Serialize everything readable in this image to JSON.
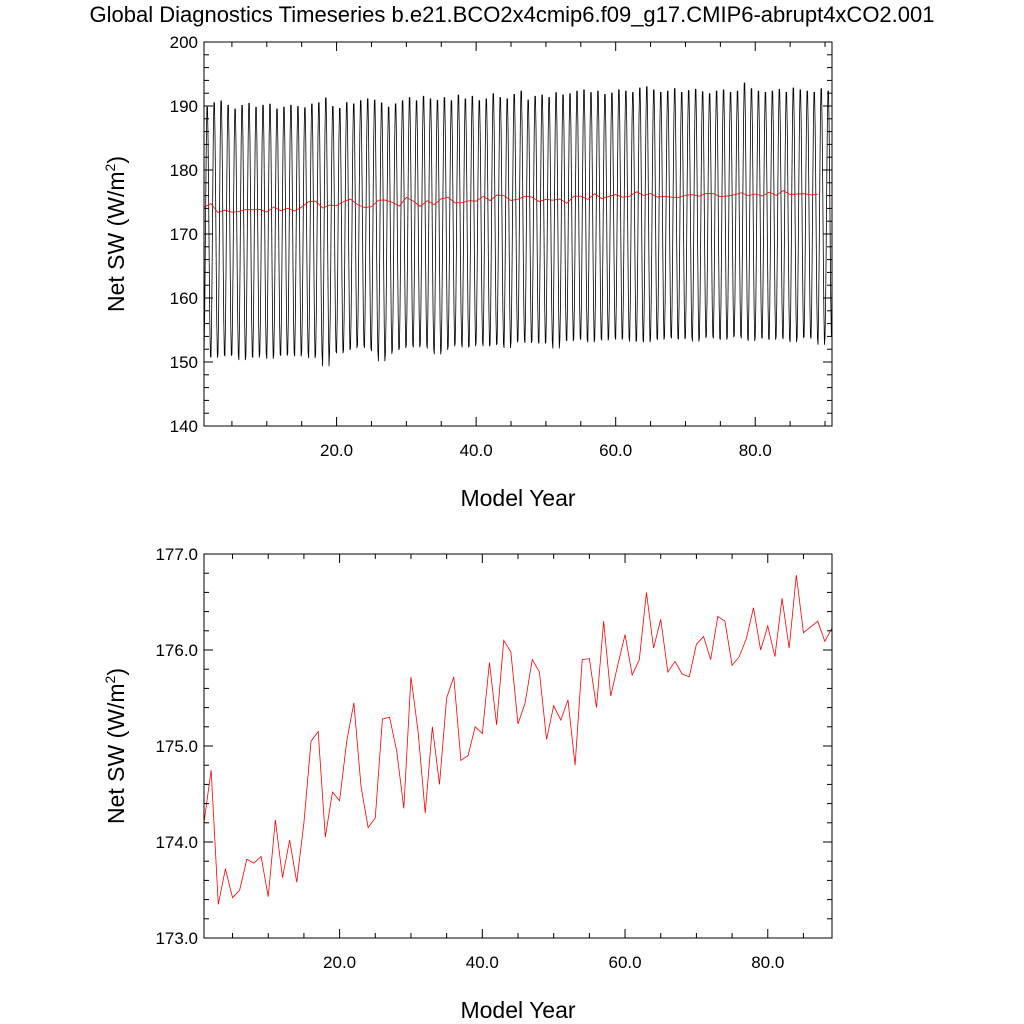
{
  "title": "Global Diagnostics Timeseries b.e21.BCO2x4cmip6.f09_g17.CMIP6-abrupt4xCO2.001",
  "colors": {
    "monthly": "#000000",
    "annual": "#ff0000"
  },
  "chart_data": [
    {
      "type": "line",
      "xlabel": "Model Year",
      "ylabel_main": "Net SW (W/m",
      "ylabel_sup": "2",
      "ylabel_end": ")",
      "xlim": [
        1,
        91
      ],
      "ylim": [
        140,
        200
      ],
      "yticks": [
        140,
        150,
        160,
        170,
        180,
        190,
        200
      ],
      "ytick_labels": [
        "140",
        "150",
        "160",
        "170",
        "180",
        "190",
        "200"
      ],
      "xticks": [
        20,
        40,
        60,
        80
      ],
      "xtick_labels": [
        "20.0",
        "40.0",
        "60.0",
        "80.0"
      ],
      "grid": false,
      "series": [
        {
          "color": "#000000",
          "style": "monthly seasonal cycle",
          "x_start": 1,
          "steps_per_year": 12,
          "annual_max": [
            190.5,
            191.2,
            191.5,
            190.8,
            190.2,
            190.8,
            191.1,
            190.5,
            190.8,
            191.0,
            190.2,
            190.5,
            190.8,
            190.6,
            190.4,
            191.0,
            191.2,
            192.0,
            190.6,
            190.3,
            191.2,
            191.0,
            191.5,
            191.8,
            191.6,
            191.2,
            190.5,
            191.0,
            191.5,
            192.0,
            191.5,
            192.2,
            191.8,
            191.6,
            192.0,
            191.5,
            192.4,
            191.8,
            192.2,
            191.5,
            191.8,
            192.6,
            192.0,
            191.8,
            192.5,
            193.0,
            191.6,
            192.2,
            192.4,
            192.0,
            192.8,
            192.4,
            192.6,
            193.0,
            193.2,
            192.8,
            193.0,
            192.5,
            192.7,
            193.2,
            193.0,
            192.8,
            193.5,
            193.7,
            193.2,
            192.8,
            193.0,
            193.4,
            192.8,
            193.1,
            193.3,
            192.9,
            192.6,
            193.0,
            193.2,
            192.8,
            193.0,
            194.3,
            193.4,
            193.0,
            192.8,
            193.0,
            193.3,
            192.8,
            193.5,
            193.2,
            193.0,
            192.8,
            193.4,
            193.0
          ],
          "annual_min": [
            150.2,
            150.0,
            150.4,
            150.3,
            150.5,
            149.6,
            150.2,
            150.0,
            150.6,
            149.8,
            150.5,
            150.3,
            150.7,
            150.2,
            150.8,
            149.9,
            150.5,
            148.6,
            151.0,
            150.7,
            151.2,
            151.5,
            152.0,
            151.5,
            151.0,
            149.4,
            150.6,
            151.2,
            151.5,
            152.0,
            151.6,
            152.1,
            151.4,
            150.5,
            151.2,
            151.8,
            152.2,
            151.6,
            151.8,
            152.4,
            151.8,
            152.0,
            152.2,
            151.5,
            152.4,
            152.8,
            152.3,
            152.6,
            152.2,
            152.5,
            151.4,
            152.8,
            152.6,
            153.0,
            152.8,
            152.4,
            153.0,
            152.7,
            153.2,
            152.8,
            153.1,
            152.5,
            152.7,
            152.4,
            153.0,
            152.8,
            153.3,
            153.0,
            152.9,
            153.2,
            152.5,
            153.1,
            153.4,
            153.0,
            152.8,
            153.2,
            153.5,
            153.0,
            152.6,
            153.2,
            153.0,
            152.8,
            153.3,
            152.9,
            152.4,
            153.1,
            153.3,
            153.0,
            152.0,
            153.2
          ]
        },
        {
          "color": "#ff0000",
          "style": "annual mean",
          "x_start": 1,
          "values": [
            174.2,
            174.75,
            173.35,
            173.72,
            173.42,
            173.5,
            173.82,
            173.78,
            173.85,
            173.43,
            174.23,
            173.63,
            174.02,
            173.58,
            174.2,
            175.05,
            175.15,
            174.05,
            174.52,
            174.43,
            175.05,
            175.45,
            174.58,
            174.15,
            174.25,
            175.28,
            175.3,
            174.95,
            174.35,
            175.72,
            175.15,
            174.3,
            175.2,
            174.6,
            175.5,
            175.72,
            174.85,
            174.9,
            175.2,
            175.13,
            175.87,
            175.22,
            176.1,
            175.98,
            175.23,
            175.45,
            175.9,
            175.77,
            175.07,
            175.42,
            175.27,
            175.48,
            174.8,
            175.9,
            175.91,
            175.4,
            176.3,
            175.52,
            175.85,
            176.16,
            175.74,
            175.9,
            176.6,
            176.02,
            176.32,
            175.77,
            175.88,
            175.75,
            175.72,
            176.06,
            176.14,
            175.9,
            176.35,
            176.3,
            175.84,
            175.93,
            176.12,
            176.44,
            176.0,
            176.25,
            175.93,
            176.54,
            176.02,
            176.78,
            176.18,
            176.24,
            176.3,
            176.09,
            176.23
          ]
        }
      ]
    },
    {
      "type": "line",
      "xlabel": "Model Year",
      "ylabel_main": "Net SW (W/m",
      "ylabel_sup": "2",
      "ylabel_end": ")",
      "xlim": [
        1,
        89
      ],
      "ylim": [
        173,
        177
      ],
      "yticks": [
        173,
        174,
        175,
        176,
        177
      ],
      "ytick_labels": [
        "173.0",
        "174.0",
        "175.0",
        "176.0",
        "177.0"
      ],
      "xticks": [
        20,
        40,
        60,
        80
      ],
      "xtick_labels": [
        "20.0",
        "40.0",
        "60.0",
        "80.0"
      ],
      "grid": false,
      "series": [
        {
          "color": "#ff0000",
          "style": "annual mean",
          "x_start": 1,
          "values": [
            174.2,
            174.75,
            173.35,
            173.72,
            173.42,
            173.5,
            173.82,
            173.78,
            173.85,
            173.43,
            174.23,
            173.63,
            174.02,
            173.58,
            174.2,
            175.05,
            175.15,
            174.05,
            174.52,
            174.43,
            175.05,
            175.45,
            174.58,
            174.15,
            174.25,
            175.28,
            175.3,
            174.95,
            174.35,
            175.72,
            175.15,
            174.3,
            175.2,
            174.6,
            175.5,
            175.72,
            174.85,
            174.9,
            175.2,
            175.13,
            175.87,
            175.22,
            176.1,
            175.98,
            175.23,
            175.45,
            175.9,
            175.77,
            175.07,
            175.42,
            175.27,
            175.48,
            174.8,
            175.9,
            175.91,
            175.4,
            176.3,
            175.52,
            175.85,
            176.16,
            175.74,
            175.9,
            176.6,
            176.02,
            176.32,
            175.77,
            175.88,
            175.75,
            175.72,
            176.06,
            176.14,
            175.9,
            176.35,
            176.3,
            175.84,
            175.93,
            176.12,
            176.44,
            176.0,
            176.25,
            175.93,
            176.54,
            176.02,
            176.78,
            176.18,
            176.24,
            176.3,
            176.09,
            176.23
          ]
        }
      ]
    }
  ]
}
